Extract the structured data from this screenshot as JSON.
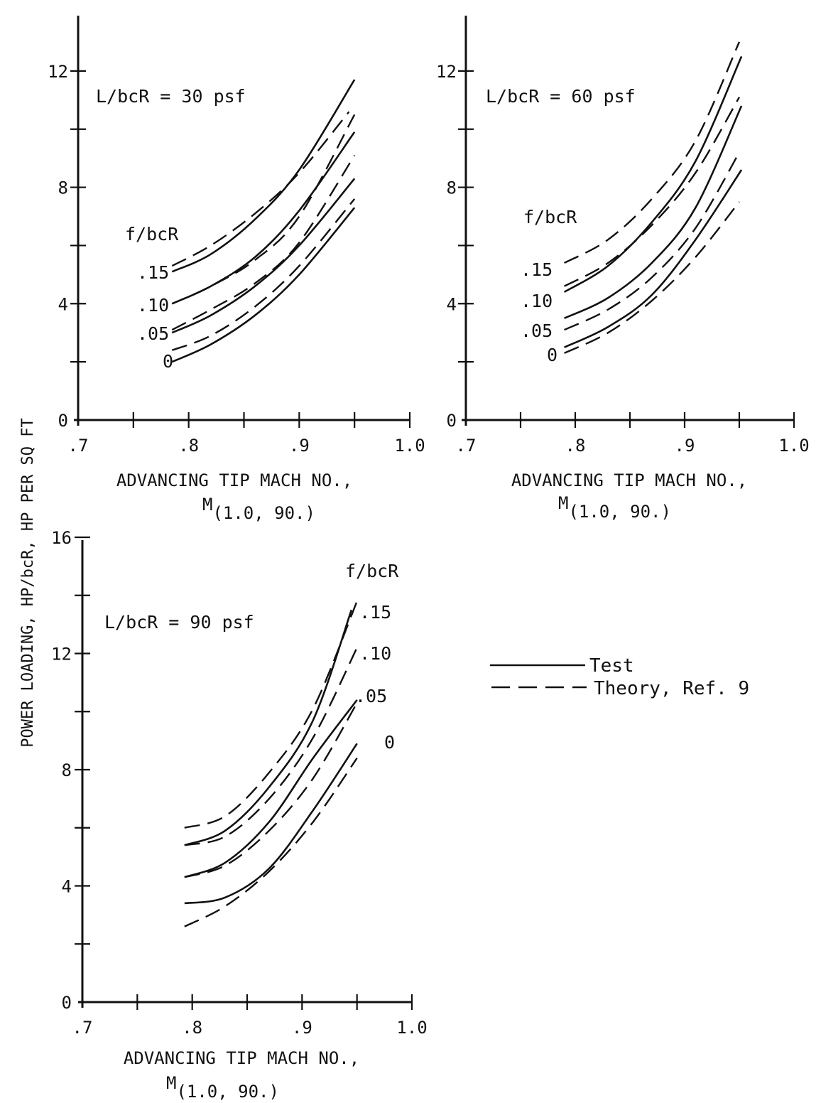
{
  "figure": {
    "ylabel": "POWER LOADING, HP/bcR, HP PER SQ FT",
    "legend": {
      "test_label": "Test",
      "theory_label": "Theory, Ref. 9"
    }
  },
  "chart_data": [
    {
      "type": "line",
      "annotation": "L/bcR = 30 psf",
      "param_label": "f/bcR",
      "param_values": [
        ".15",
        ".10",
        ".05",
        "0"
      ],
      "xlabel_line1": "ADVANCING TIP MACH NO.,",
      "xlabel_line2_base": "M",
      "xlabel_line2_sub": "(1.0, 90.)",
      "xlim": [
        0.7,
        1.0
      ],
      "ylim": [
        0,
        14
      ],
      "x_ticks": [
        0.7,
        0.75,
        0.8,
        0.85,
        0.9,
        0.95,
        1.0
      ],
      "x_tick_labels": [
        ".7",
        "",
        ".8",
        "",
        ".9",
        "",
        "1.0"
      ],
      "y_ticks": [
        0,
        2,
        4,
        6,
        8,
        10,
        12
      ],
      "y_tick_labels": [
        "0",
        "",
        "4",
        "",
        "8",
        "",
        "12"
      ],
      "series": [
        {
          "style": "test",
          "x": [
            0.785,
            0.82,
            0.86,
            0.9,
            0.95
          ],
          "y": [
            5.1,
            5.7,
            6.9,
            8.6,
            11.7
          ]
        },
        {
          "style": "theory",
          "x": [
            0.785,
            0.82,
            0.86,
            0.9,
            0.945
          ],
          "y": [
            5.3,
            6.0,
            7.1,
            8.5,
            10.6
          ]
        },
        {
          "style": "test",
          "x": [
            0.785,
            0.82,
            0.86,
            0.9,
            0.95
          ],
          "y": [
            4.0,
            4.6,
            5.6,
            7.2,
            9.9
          ]
        },
        {
          "style": "theory",
          "x": [
            0.785,
            0.82,
            0.86,
            0.9,
            0.95
          ],
          "y": [
            4.0,
            4.6,
            5.5,
            7.0,
            10.5
          ]
        },
        {
          "style": "test",
          "x": [
            0.785,
            0.82,
            0.86,
            0.9,
            0.95
          ],
          "y": [
            3.0,
            3.6,
            4.6,
            6.0,
            8.3
          ]
        },
        {
          "style": "theory",
          "x": [
            0.785,
            0.82,
            0.86,
            0.9,
            0.95
          ],
          "y": [
            3.1,
            3.8,
            4.7,
            6.1,
            9.1
          ]
        },
        {
          "style": "test",
          "x": [
            0.785,
            0.82,
            0.86,
            0.9,
            0.95
          ],
          "y": [
            2.0,
            2.6,
            3.6,
            5.0,
            7.3
          ]
        },
        {
          "style": "theory",
          "x": [
            0.785,
            0.82,
            0.86,
            0.9,
            0.95
          ],
          "y": [
            2.4,
            2.9,
            3.9,
            5.3,
            7.6
          ]
        }
      ]
    },
    {
      "type": "line",
      "annotation": "L/bcR = 60 psf",
      "param_label": "f/bcR",
      "param_values": [
        ".15",
        ".10",
        ".05",
        "0"
      ],
      "xlabel_line1": "ADVANCING TIP MACH NO.,",
      "xlabel_line2_base": "M",
      "xlabel_line2_sub": "(1.0, 90.)",
      "xlim": [
        0.7,
        1.0
      ],
      "ylim": [
        0,
        14
      ],
      "x_ticks": [
        0.7,
        0.75,
        0.8,
        0.85,
        0.9,
        0.95,
        1.0
      ],
      "x_tick_labels": [
        ".7",
        "",
        ".8",
        "",
        ".9",
        "",
        "1.0"
      ],
      "y_ticks": [
        0,
        2,
        4,
        6,
        8,
        10,
        12
      ],
      "y_tick_labels": [
        "0",
        "",
        "4",
        "",
        "8",
        "",
        "12"
      ],
      "series": [
        {
          "style": "theory",
          "x": [
            0.79,
            0.83,
            0.87,
            0.91,
            0.95
          ],
          "y": [
            5.4,
            6.2,
            7.6,
            9.6,
            13.0
          ]
        },
        {
          "style": "test",
          "x": [
            0.79,
            0.83,
            0.87,
            0.91,
            0.952
          ],
          "y": [
            4.4,
            5.3,
            6.8,
            8.9,
            12.5
          ]
        },
        {
          "style": "theory",
          "x": [
            0.79,
            0.83,
            0.87,
            0.91,
            0.95
          ],
          "y": [
            4.6,
            5.4,
            6.7,
            8.5,
            11.1
          ]
        },
        {
          "style": "test",
          "x": [
            0.79,
            0.83,
            0.87,
            0.91,
            0.952
          ],
          "y": [
            3.5,
            4.2,
            5.4,
            7.3,
            10.8
          ]
        },
        {
          "style": "theory",
          "x": [
            0.79,
            0.83,
            0.87,
            0.91,
            0.95
          ],
          "y": [
            3.1,
            3.8,
            4.9,
            6.6,
            9.2
          ]
        },
        {
          "style": "test",
          "x": [
            0.79,
            0.83,
            0.87,
            0.91,
            0.952
          ],
          "y": [
            2.5,
            3.2,
            4.3,
            6.2,
            8.6
          ]
        },
        {
          "style": "theory",
          "x": [
            0.79,
            0.83,
            0.87,
            0.91,
            0.95
          ],
          "y": [
            2.3,
            3.0,
            4.1,
            5.6,
            7.5
          ]
        }
      ]
    },
    {
      "type": "line",
      "annotation": "L/bcR = 90 psf",
      "param_label": "f/bcR",
      "param_values": [
        ".15",
        ".10",
        ".05",
        "0"
      ],
      "xlabel_line1": "ADVANCING TIP MACH NO.,",
      "xlabel_line2_base": "M",
      "xlabel_line2_sub": "(1.0, 90.)",
      "xlim": [
        0.7,
        1.0
      ],
      "ylim": [
        0,
        16
      ],
      "x_ticks": [
        0.7,
        0.75,
        0.8,
        0.85,
        0.9,
        0.95,
        1.0
      ],
      "x_tick_labels": [
        ".7",
        "",
        ".8",
        "",
        ".9",
        "",
        "1.0"
      ],
      "y_ticks": [
        0,
        2,
        4,
        6,
        8,
        10,
        12,
        14,
        16
      ],
      "y_tick_labels": [
        "0",
        "",
        "4",
        "",
        "8",
        "",
        "12",
        "",
        "16"
      ],
      "series": [
        {
          "style": "theory",
          "x": [
            0.793,
            0.83,
            0.87,
            0.91,
            0.95
          ],
          "y": [
            6.0,
            6.4,
            7.9,
            10.1,
            13.8
          ]
        },
        {
          "style": "test",
          "x": [
            0.793,
            0.83,
            0.87,
            0.91,
            0.945
          ],
          "y": [
            5.4,
            5.9,
            7.4,
            9.7,
            13.5
          ]
        },
        {
          "style": "theory",
          "x": [
            0.793,
            0.83,
            0.87,
            0.91,
            0.95
          ],
          "y": [
            5.4,
            5.7,
            7.0,
            9.1,
            12.2
          ]
        },
        {
          "style": "test",
          "x": [
            0.793,
            0.83,
            0.87,
            0.91,
            0.95
          ],
          "y": [
            4.3,
            4.8,
            6.2,
            8.4,
            10.4
          ]
        },
        {
          "style": "theory",
          "x": [
            0.793,
            0.83,
            0.87,
            0.91,
            0.95
          ],
          "y": [
            4.3,
            4.7,
            5.9,
            7.7,
            10.3
          ]
        },
        {
          "style": "test",
          "x": [
            0.793,
            0.83,
            0.87,
            0.91,
            0.95
          ],
          "y": [
            3.4,
            3.6,
            4.6,
            6.6,
            8.9
          ]
        },
        {
          "style": "theory",
          "x": [
            0.793,
            0.83,
            0.87,
            0.91,
            0.95
          ],
          "y": [
            2.6,
            3.3,
            4.5,
            6.2,
            8.4
          ]
        }
      ]
    }
  ]
}
